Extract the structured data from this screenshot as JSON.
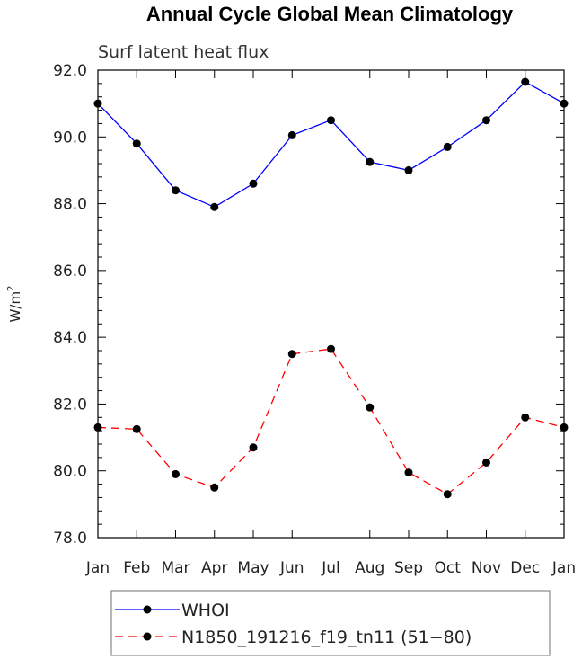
{
  "chart_data": {
    "type": "line",
    "title": "Annual Cycle Global Mean Climatology",
    "subtitle": "Surf latent heat flux",
    "ylabel": "W/m",
    "ylabel_sup": "2",
    "xlabel": "",
    "categories": [
      "Jan",
      "Feb",
      "Mar",
      "Apr",
      "May",
      "Jun",
      "Jul",
      "Aug",
      "Sep",
      "Oct",
      "Nov",
      "Dec",
      "Jan"
    ],
    "ylim": [
      78.0,
      92.0
    ],
    "yticks": [
      "78.0",
      "80.0",
      "82.0",
      "84.0",
      "86.0",
      "88.0",
      "90.0",
      "92.0"
    ],
    "legend_position": "bottom",
    "series": [
      {
        "name": "WHOI",
        "color": "#0000ff",
        "dash": "solid",
        "marker": "filled-circle",
        "values": [
          91.0,
          89.8,
          88.4,
          87.9,
          88.6,
          90.05,
          90.5,
          89.25,
          89.0,
          89.7,
          90.5,
          91.65,
          91.0
        ]
      },
      {
        "name": "N1850_191216_f19_tn11 (51−80)",
        "color": "#ff0000",
        "dash": "dashed",
        "marker": "filled-circle",
        "values": [
          81.3,
          81.25,
          79.9,
          79.5,
          80.7,
          83.5,
          83.65,
          81.9,
          79.95,
          79.3,
          80.25,
          81.6,
          81.3
        ]
      }
    ]
  }
}
